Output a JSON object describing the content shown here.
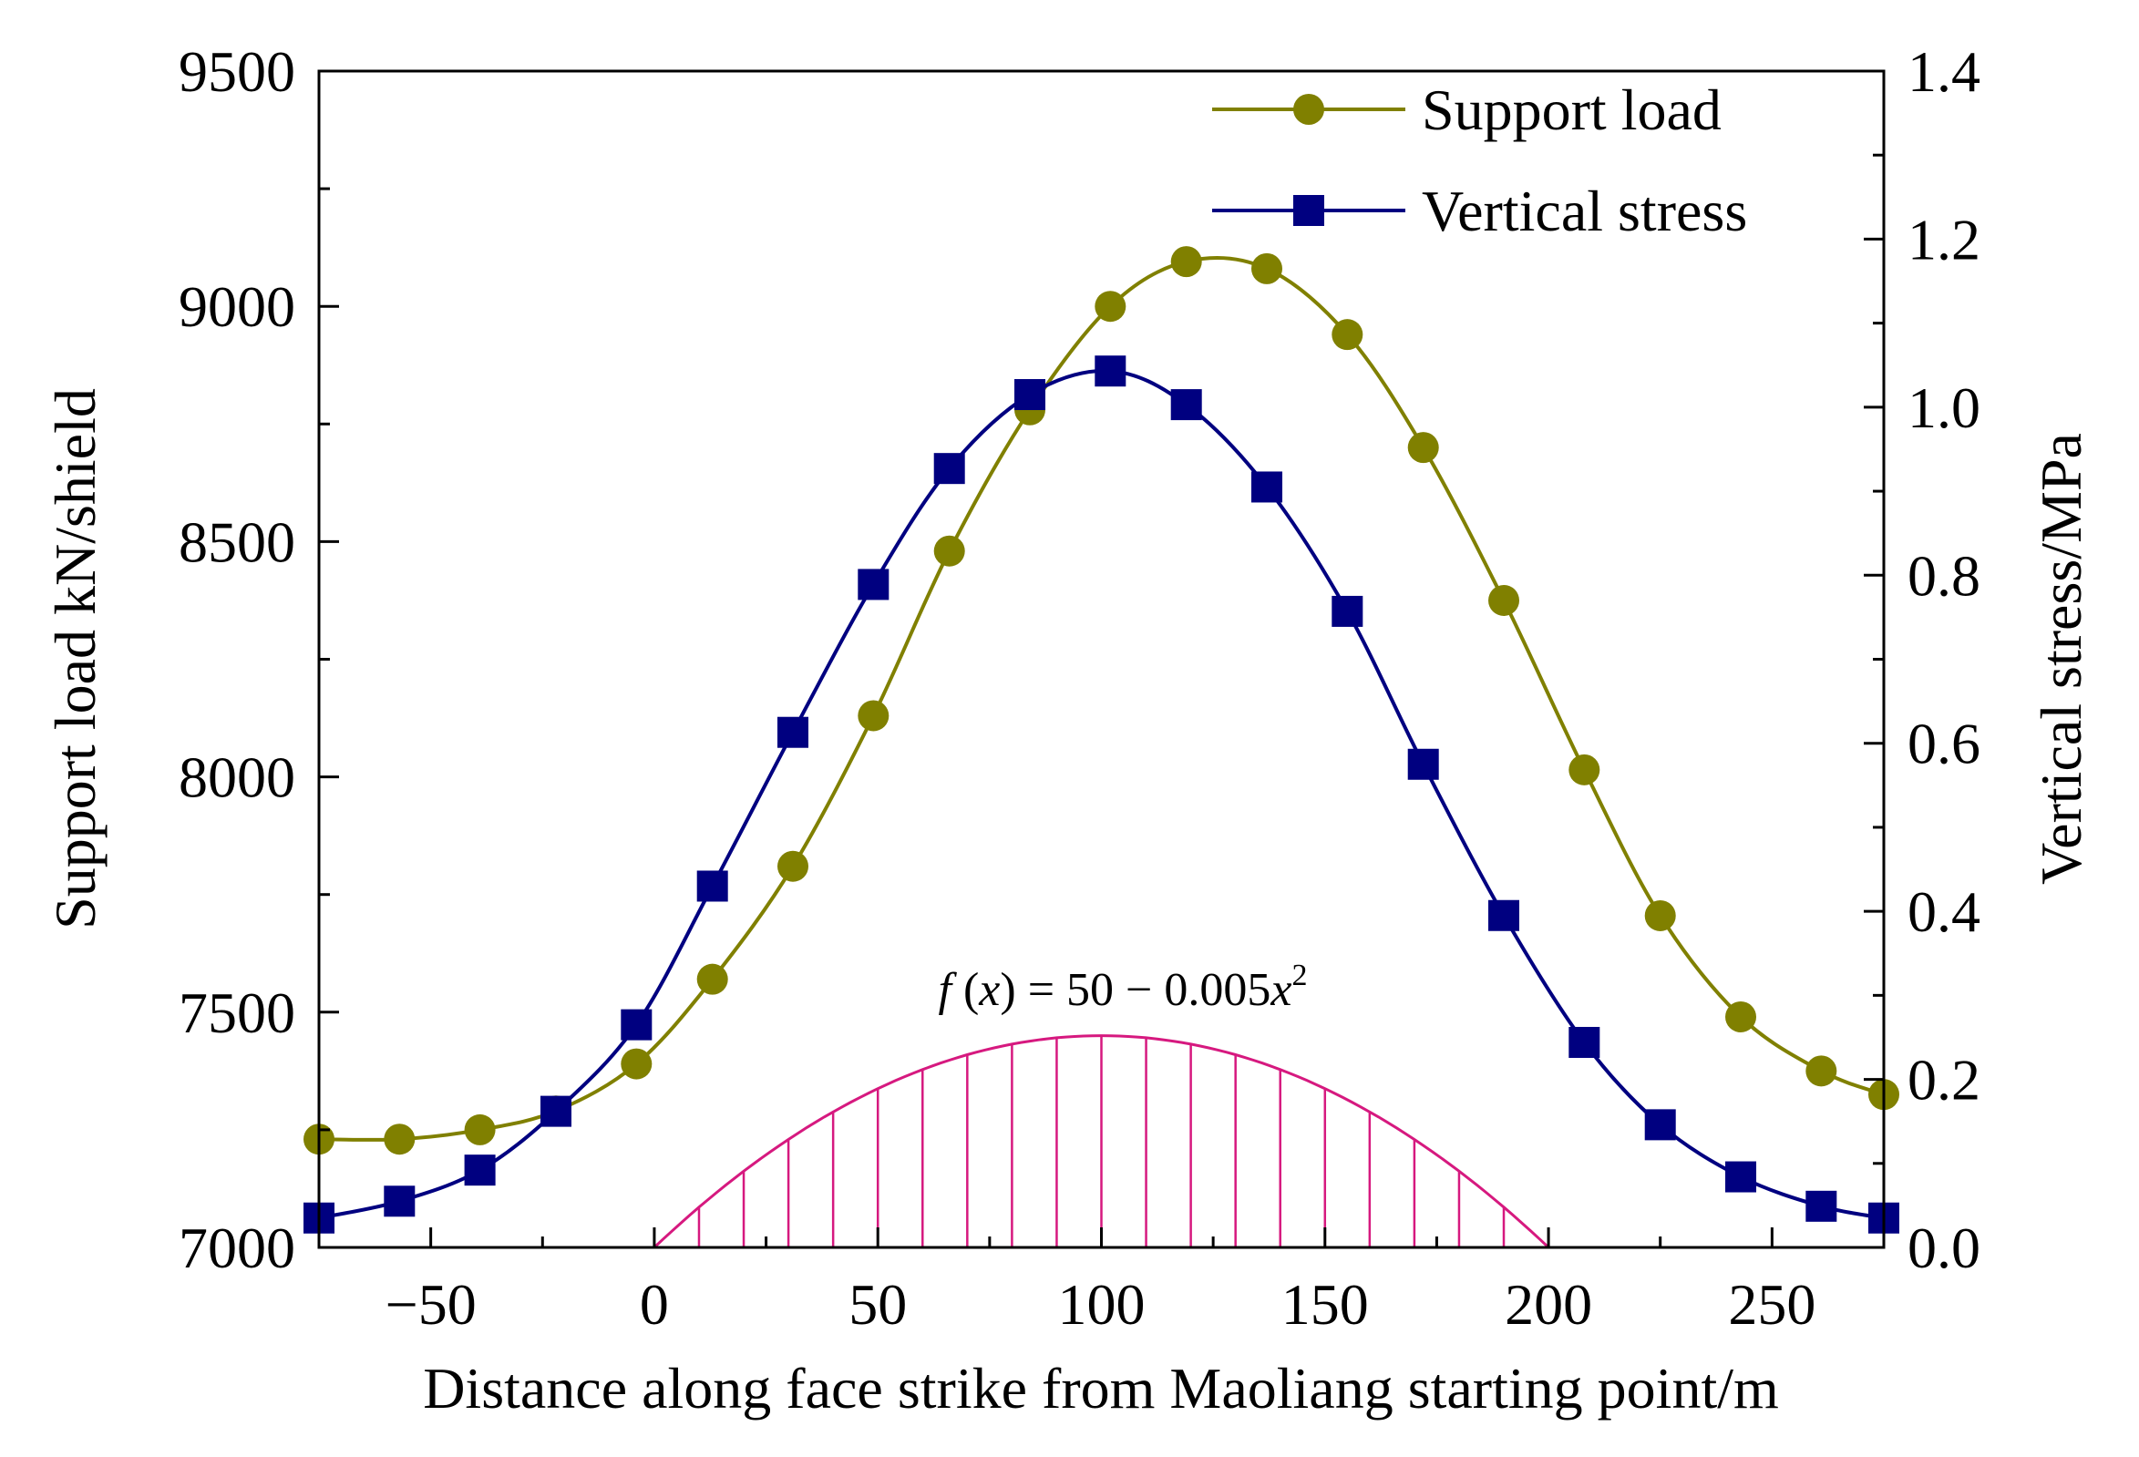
{
  "chart_data": {
    "type": "line",
    "title": "",
    "xlabel": "Distance along face strike from Maoliang starting point/m",
    "ylabel_left": "Support load kN/shield",
    "ylabel_right": "Vertical stress/MPa",
    "xlim": [
      -75,
      275
    ],
    "ylim_left": [
      7000,
      9500
    ],
    "ylim_right": [
      0.0,
      1.4
    ],
    "x_ticks": [
      "−50",
      "0",
      "50",
      "100",
      "150",
      "200",
      "250"
    ],
    "x_tick_values": [
      -50,
      0,
      50,
      100,
      150,
      200,
      250
    ],
    "y_left_ticks": [
      "7000",
      "7500",
      "8000",
      "8500",
      "9000",
      "9500"
    ],
    "y_left_tick_values": [
      7000,
      7500,
      8000,
      8500,
      9000,
      9500
    ],
    "y_right_ticks": [
      "0.0",
      "0.2",
      "0.4",
      "0.6",
      "0.8",
      "1.0",
      "1.2",
      "1.4"
    ],
    "y_right_tick_values": [
      0.0,
      0.2,
      0.4,
      0.6,
      0.8,
      1.0,
      1.2,
      1.4
    ],
    "grid": false,
    "legend_position": "top-right",
    "series": [
      {
        "name": "Support load",
        "axis": "left",
        "marker": "circle",
        "color": "#808000",
        "x": [
          -75,
          -57,
          -39,
          -22,
          -4,
          13,
          31,
          49,
          66,
          84,
          102,
          119,
          137,
          155,
          172,
          190,
          208,
          225,
          243,
          261,
          275
        ],
        "values": [
          7230,
          7230,
          7250,
          7290,
          7390,
          7570,
          7810,
          8130,
          8480,
          8780,
          9000,
          9095,
          9080,
          8940,
          8700,
          8375,
          8015,
          7705,
          7490,
          7375,
          7325
        ]
      },
      {
        "name": "Vertical stress",
        "axis": "right",
        "marker": "square",
        "color": "#000080",
        "x": [
          -75,
          -57,
          -39,
          -22,
          -4,
          13,
          31,
          49,
          66,
          84,
          102,
          119,
          137,
          155,
          172,
          190,
          208,
          225,
          243,
          261,
          275
        ],
        "values": [
          0.035,
          0.055,
          0.092,
          0.162,
          0.265,
          0.43,
          0.613,
          0.789,
          0.927,
          1.015,
          1.043,
          1.003,
          0.905,
          0.757,
          0.575,
          0.395,
          0.244,
          0.146,
          0.084,
          0.049,
          0.035
        ]
      },
      {
        "name": "f(x) = 50 − 0.005x²",
        "axis": "left",
        "kind": "hatched-parabola",
        "color": "#d6197f",
        "x_range": [
          0,
          200
        ],
        "peak_x": 100,
        "peak_value": 7450,
        "hatch_step": 10
      }
    ],
    "annotation": {
      "fx": "f",
      "open": " (",
      "var": "x",
      "close": ")",
      "rhs": " = 50 − 0.005",
      "rhs_var": "x",
      "sup": "2"
    }
  }
}
